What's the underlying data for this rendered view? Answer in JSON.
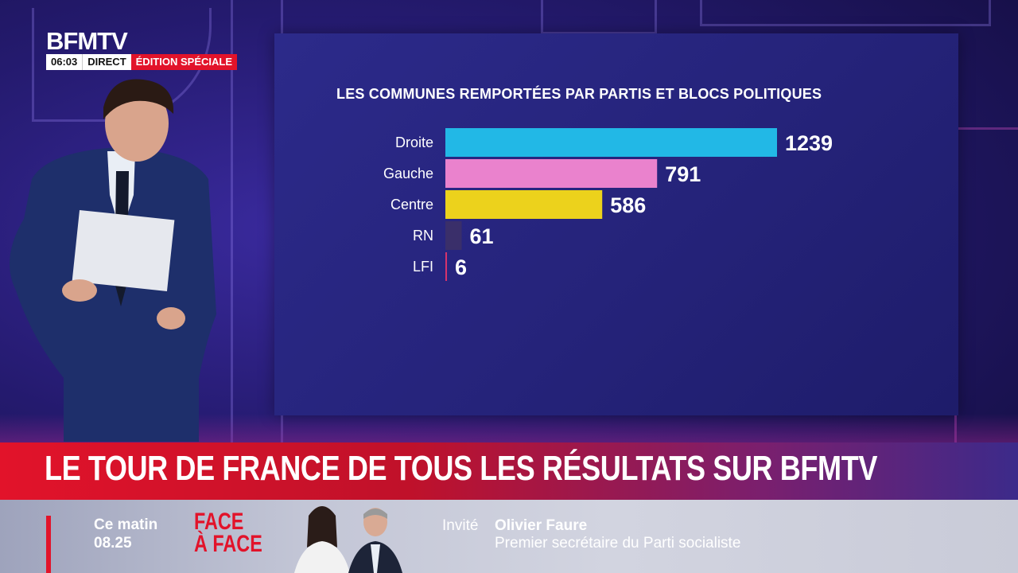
{
  "brand": {
    "logo": "BFMTV",
    "time": "06:03",
    "live": "DIRECT",
    "edition": "ÉDITION SPÉCIALE"
  },
  "chart": {
    "title": "LES COMMUNES REMPORTÉES PAR PARTIS ET BLOCS POLITIQUES"
  },
  "chart_data": {
    "type": "bar",
    "orientation": "horizontal",
    "title": "LES COMMUNES REMPORTÉES PAR PARTIS ET BLOCS POLITIQUES",
    "categories": [
      "Droite",
      "Gauche",
      "Centre",
      "RN",
      "LFI"
    ],
    "values": [
      1239,
      791,
      586,
      61,
      6
    ],
    "value_labels": [
      "1239",
      "791",
      "586",
      "61",
      "6"
    ],
    "colors": [
      "#22b8e6",
      "#ea82cd",
      "#ecd21c",
      "#3a2f6a",
      "#d6336c"
    ],
    "xlim": [
      0,
      1239
    ],
    "grid": false,
    "legend": "none"
  },
  "headline": {
    "text": "LE TOUR DE FRANCE DE TOUS LES RÉSULTATS SUR BFMTV"
  },
  "ticker": {
    "when_line1": "Ce matin",
    "when_line2": "08.25",
    "show_line1": "FACE",
    "show_line2": "À FACE",
    "guest_label": "Invité",
    "guest_name": "Olivier Faure",
    "guest_role": "Premier secrétaire du Parti socialiste"
  }
}
